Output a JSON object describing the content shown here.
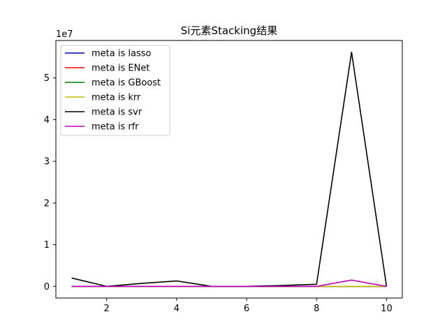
{
  "chart_data": {
    "type": "line",
    "title": "Si元素Stacking结果",
    "xlabel": "",
    "ylabel": "",
    "y_offset_label": "1e7",
    "xlim": [
      0.55,
      10.45
    ],
    "ylim": [
      -0.28,
      5.9
    ],
    "x_ticks": [
      2,
      4,
      6,
      8,
      10
    ],
    "y_ticks": [
      0,
      1,
      2,
      3,
      4,
      5
    ],
    "grid": false,
    "legend_position": "upper left",
    "x": [
      1,
      2,
      3,
      4,
      5,
      6,
      7,
      8,
      9,
      10
    ],
    "series": [
      {
        "name": "meta is lasso",
        "color": "#0000bf",
        "values": [
          0,
          0,
          0,
          0,
          0,
          0,
          0,
          0,
          0,
          0
        ]
      },
      {
        "name": "meta is ENet",
        "color": "#ff0000",
        "values": [
          0,
          0,
          0,
          0,
          0,
          0,
          0,
          0,
          0,
          0
        ]
      },
      {
        "name": "meta is GBoost",
        "color": "#008000",
        "values": [
          0,
          0,
          0,
          0,
          0,
          0,
          0,
          0,
          0,
          0
        ]
      },
      {
        "name": "meta is krr",
        "color": "#bfbf00",
        "values": [
          0,
          0,
          0,
          0,
          0,
          0,
          0,
          0,
          0,
          0
        ]
      },
      {
        "name": "meta is svr",
        "color": "#000000",
        "values": [
          0.2,
          0.0,
          0.07,
          0.13,
          0.0,
          0.0,
          0.02,
          0.05,
          5.62,
          0.0
        ]
      },
      {
        "name": "meta is rfr",
        "color": "#bf00bf",
        "values": [
          0,
          0,
          0,
          0,
          0,
          0,
          0,
          0,
          0.15,
          0
        ]
      }
    ]
  }
}
